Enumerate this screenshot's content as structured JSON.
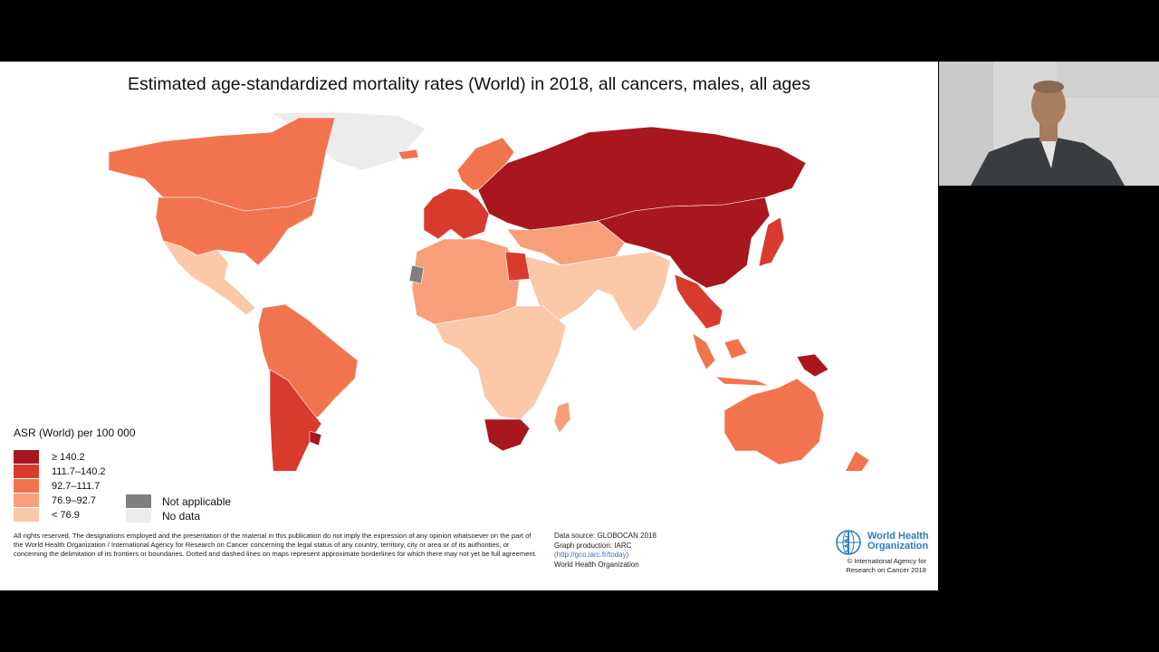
{
  "slide": {
    "title": "Estimated age-standardized mortality rates (World) in 2018, all cancers, males, all ages",
    "legend": {
      "title": "ASR (World) per 100 000",
      "items": [
        {
          "label": "≥ 140.2",
          "color": "#a8171d"
        },
        {
          "label": "111.7–140.2",
          "color": "#d83b2e"
        },
        {
          "label": "92.7–111.7",
          "color": "#f2744f"
        },
        {
          "label": "76.9–92.7",
          "color": "#f79f7b"
        },
        {
          "label": "< 76.9",
          "color": "#fbc8a8"
        }
      ],
      "not_applicable": {
        "label": "Not applicable",
        "color": "#7f7f7f"
      },
      "no_data": {
        "label": "No data",
        "color": "#ececec"
      }
    },
    "disclaimer": "All rights reserved. The designations employed and the presentation of the material in this publication do not imply the expression of any opinion whatsoever on the part of the World Health Organization / International Agency for Research on Cancer concerning the legal status of any country, territory, city or area or of its authorities, or concerning the delimitation of its frontiers or boundaries. Dotted and dashed lines on maps represent approximate borderlines for which there may not yet be full agreement.",
    "source": {
      "data_source": "Data source: GLOBOCAN 2018",
      "graph_production": "Graph production: IARC",
      "link": "(http://gco.iarc.fr/today)",
      "org": "World Health Organization"
    },
    "who_logo": {
      "name": "World Health\nOrganization",
      "copyright": "© International Agency for\nResearch on Cancer 2018"
    }
  },
  "map_regions": [
    {
      "name": "greenland",
      "fill": "#ececec"
    },
    {
      "name": "canada",
      "fill": "#f2744f"
    },
    {
      "name": "usa",
      "fill": "#f2744f"
    },
    {
      "name": "mexico-central-america",
      "fill": "#fbc8a8"
    },
    {
      "name": "south-america",
      "fill": "#f2744f"
    },
    {
      "name": "argentina-chile",
      "fill": "#d83b2e"
    },
    {
      "name": "uruguay",
      "fill": "#a8171d"
    },
    {
      "name": "iceland-scandinavia",
      "fill": "#f2744f"
    },
    {
      "name": "western-europe",
      "fill": "#d83b2e"
    },
    {
      "name": "eastern-europe-russia",
      "fill": "#a8171d"
    },
    {
      "name": "china-mongolia",
      "fill": "#a8171d"
    },
    {
      "name": "middle-east",
      "fill": "#f79f7b"
    },
    {
      "name": "arabia-india",
      "fill": "#fbc8a8"
    },
    {
      "name": "north-africa",
      "fill": "#f79f7b"
    },
    {
      "name": "egypt",
      "fill": "#d83b2e"
    },
    {
      "name": "central-africa",
      "fill": "#fbc8a8"
    },
    {
      "name": "southern-africa",
      "fill": "#a8171d"
    },
    {
      "name": "southeast-asia",
      "fill": "#d83b2e"
    },
    {
      "name": "japan-korea",
      "fill": "#d83b2e"
    },
    {
      "name": "indonesia",
      "fill": "#f2744f"
    },
    {
      "name": "papua-new-guinea",
      "fill": "#a8171d"
    },
    {
      "name": "australia",
      "fill": "#f2744f"
    },
    {
      "name": "new-zealand",
      "fill": "#f2744f"
    },
    {
      "name": "madagascar",
      "fill": "#f79f7b"
    },
    {
      "name": "western-sahara",
      "fill": "#7f7f7f"
    }
  ]
}
